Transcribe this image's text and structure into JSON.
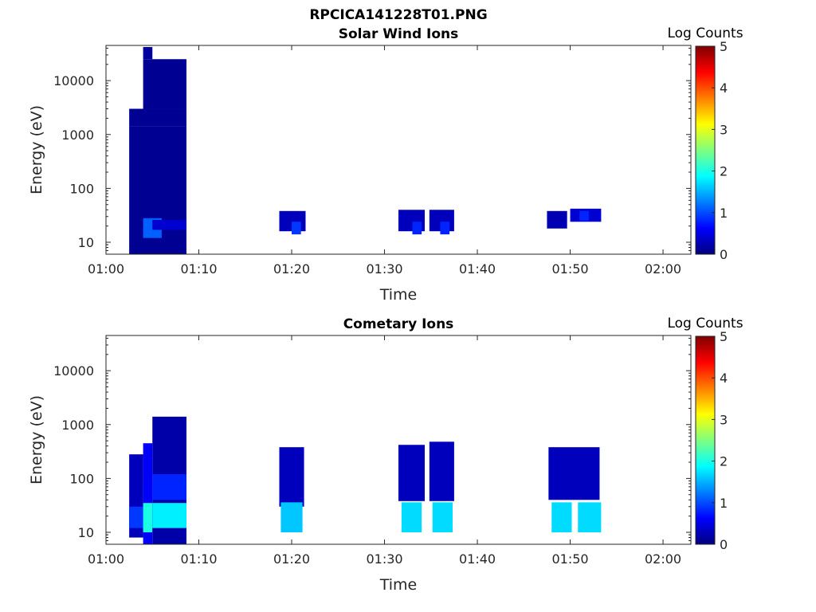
{
  "figure": {
    "title": "RPCICA141228T01.PNG"
  },
  "colors": {
    "axis": "#262626",
    "colormap": [
      "#00007f",
      "#0000ff",
      "#007fff",
      "#00ffff",
      "#7fff7f",
      "#ffff00",
      "#ff7f00",
      "#ff0000",
      "#7f0000"
    ]
  },
  "chart_data": [
    {
      "type": "heatmap",
      "title": "Solar Wind Ions",
      "xlabel": "Time",
      "ylabel": "Energy (eV)",
      "x_range": [
        "01:00",
        "02:03"
      ],
      "x_ticks": [
        "01:00",
        "01:10",
        "01:20",
        "01:30",
        "01:40",
        "01:50",
        "02:00"
      ],
      "y_scale": "log",
      "y_range": [
        6,
        45000
      ],
      "y_ticks": [
        10,
        100,
        1000,
        10000
      ],
      "y_tick_labels": [
        "10",
        "100",
        "1000",
        "10000"
      ],
      "colorbar": {
        "label": "Log Counts",
        "range": [
          0,
          5
        ],
        "ticks": [
          "0",
          "1",
          "2",
          "3",
          "4",
          "5"
        ]
      },
      "blocks": [
        {
          "t": [
            "01:02:30",
            "01:08:40"
          ],
          "e": [
            6,
            1400
          ],
          "v": 0.1
        },
        {
          "t": [
            "01:02:30",
            "01:08:40"
          ],
          "e": [
            1400,
            3000
          ],
          "v": 0.1
        },
        {
          "t": [
            "01:04:00",
            "01:08:40"
          ],
          "e": [
            3000,
            25000
          ],
          "v": 0.1
        },
        {
          "t": [
            "01:04:00",
            "01:05:00"
          ],
          "e": [
            25000,
            42000
          ],
          "v": 0.15
        },
        {
          "t": [
            "01:04:00",
            "01:06:00"
          ],
          "e": [
            12,
            28
          ],
          "v": 1.1
        },
        {
          "t": [
            "01:05:00",
            "01:08:40"
          ],
          "e": [
            17,
            26
          ],
          "v": 0.4
        },
        {
          "t": [
            "01:18:40",
            "01:21:30"
          ],
          "e": [
            16,
            38
          ],
          "v": 0.3
        },
        {
          "t": [
            "01:20:00",
            "01:21:00"
          ],
          "e": [
            14,
            24
          ],
          "v": 0.9
        },
        {
          "t": [
            "01:31:30",
            "01:34:20"
          ],
          "e": [
            16,
            40
          ],
          "v": 0.3
        },
        {
          "t": [
            "01:33:00",
            "01:34:00"
          ],
          "e": [
            14,
            24
          ],
          "v": 0.8
        },
        {
          "t": [
            "01:34:50",
            "01:37:30"
          ],
          "e": [
            16,
            40
          ],
          "v": 0.3
        },
        {
          "t": [
            "01:36:00",
            "01:37:00"
          ],
          "e": [
            14,
            24
          ],
          "v": 0.8
        },
        {
          "t": [
            "01:47:30",
            "01:49:40"
          ],
          "e": [
            18,
            38
          ],
          "v": 0.25
        },
        {
          "t": [
            "01:50:00",
            "01:53:20"
          ],
          "e": [
            24,
            42
          ],
          "v": 0.4
        },
        {
          "t": [
            "01:51:00",
            "01:52:00"
          ],
          "e": [
            25,
            38
          ],
          "v": 0.8
        }
      ]
    },
    {
      "type": "heatmap",
      "title": "Cometary Ions",
      "xlabel": "Time",
      "ylabel": "Energy (eV)",
      "x_range": [
        "01:00",
        "02:03"
      ],
      "x_ticks": [
        "01:00",
        "01:10",
        "01:20",
        "01:30",
        "01:40",
        "01:50",
        "02:00"
      ],
      "y_scale": "log",
      "y_range": [
        6,
        45000
      ],
      "y_ticks": [
        10,
        100,
        1000,
        10000
      ],
      "y_tick_labels": [
        "10",
        "100",
        "1000",
        "10000"
      ],
      "colorbar": {
        "label": "Log Counts",
        "range": [
          0,
          5
        ],
        "ticks": [
          "0",
          "1",
          "2",
          "3",
          "4",
          "5"
        ]
      },
      "blocks": [
        {
          "t": [
            "01:02:30",
            "01:04:00"
          ],
          "e": [
            8,
            280
          ],
          "v": 0.3
        },
        {
          "t": [
            "01:02:30",
            "01:04:00"
          ],
          "e": [
            12,
            30
          ],
          "v": 0.9
        },
        {
          "t": [
            "01:04:00",
            "01:05:00"
          ],
          "e": [
            6,
            450
          ],
          "v": 0.6
        },
        {
          "t": [
            "01:04:00",
            "01:05:00"
          ],
          "e": [
            10,
            35
          ],
          "v": 2.0
        },
        {
          "t": [
            "01:05:00",
            "01:08:40"
          ],
          "e": [
            6,
            1400
          ],
          "v": 0.2
        },
        {
          "t": [
            "01:05:00",
            "01:08:40"
          ],
          "e": [
            40,
            120
          ],
          "v": 0.8
        },
        {
          "t": [
            "01:05:00",
            "01:08:40"
          ],
          "e": [
            12,
            35
          ],
          "v": 1.8
        },
        {
          "t": [
            "01:18:40",
            "01:21:20"
          ],
          "e": [
            30,
            380
          ],
          "v": 0.3
        },
        {
          "t": [
            "01:18:50",
            "01:21:10"
          ],
          "e": [
            10,
            36
          ],
          "v": 1.6
        },
        {
          "t": [
            "01:31:30",
            "01:34:20"
          ],
          "e": [
            38,
            420
          ],
          "v": 0.3
        },
        {
          "t": [
            "01:31:50",
            "01:34:00"
          ],
          "e": [
            10,
            36
          ],
          "v": 1.7
        },
        {
          "t": [
            "01:34:50",
            "01:37:30"
          ],
          "e": [
            38,
            480
          ],
          "v": 0.3
        },
        {
          "t": [
            "01:35:10",
            "01:37:20"
          ],
          "e": [
            10,
            36
          ],
          "v": 1.7
        },
        {
          "t": [
            "01:47:40",
            "01:53:10"
          ],
          "e": [
            40,
            380
          ],
          "v": 0.3
        },
        {
          "t": [
            "01:48:00",
            "01:50:10"
          ],
          "e": [
            10,
            36
          ],
          "v": 1.7
        },
        {
          "t": [
            "01:50:50",
            "01:53:20"
          ],
          "e": [
            10,
            36
          ],
          "v": 1.7
        }
      ]
    }
  ]
}
